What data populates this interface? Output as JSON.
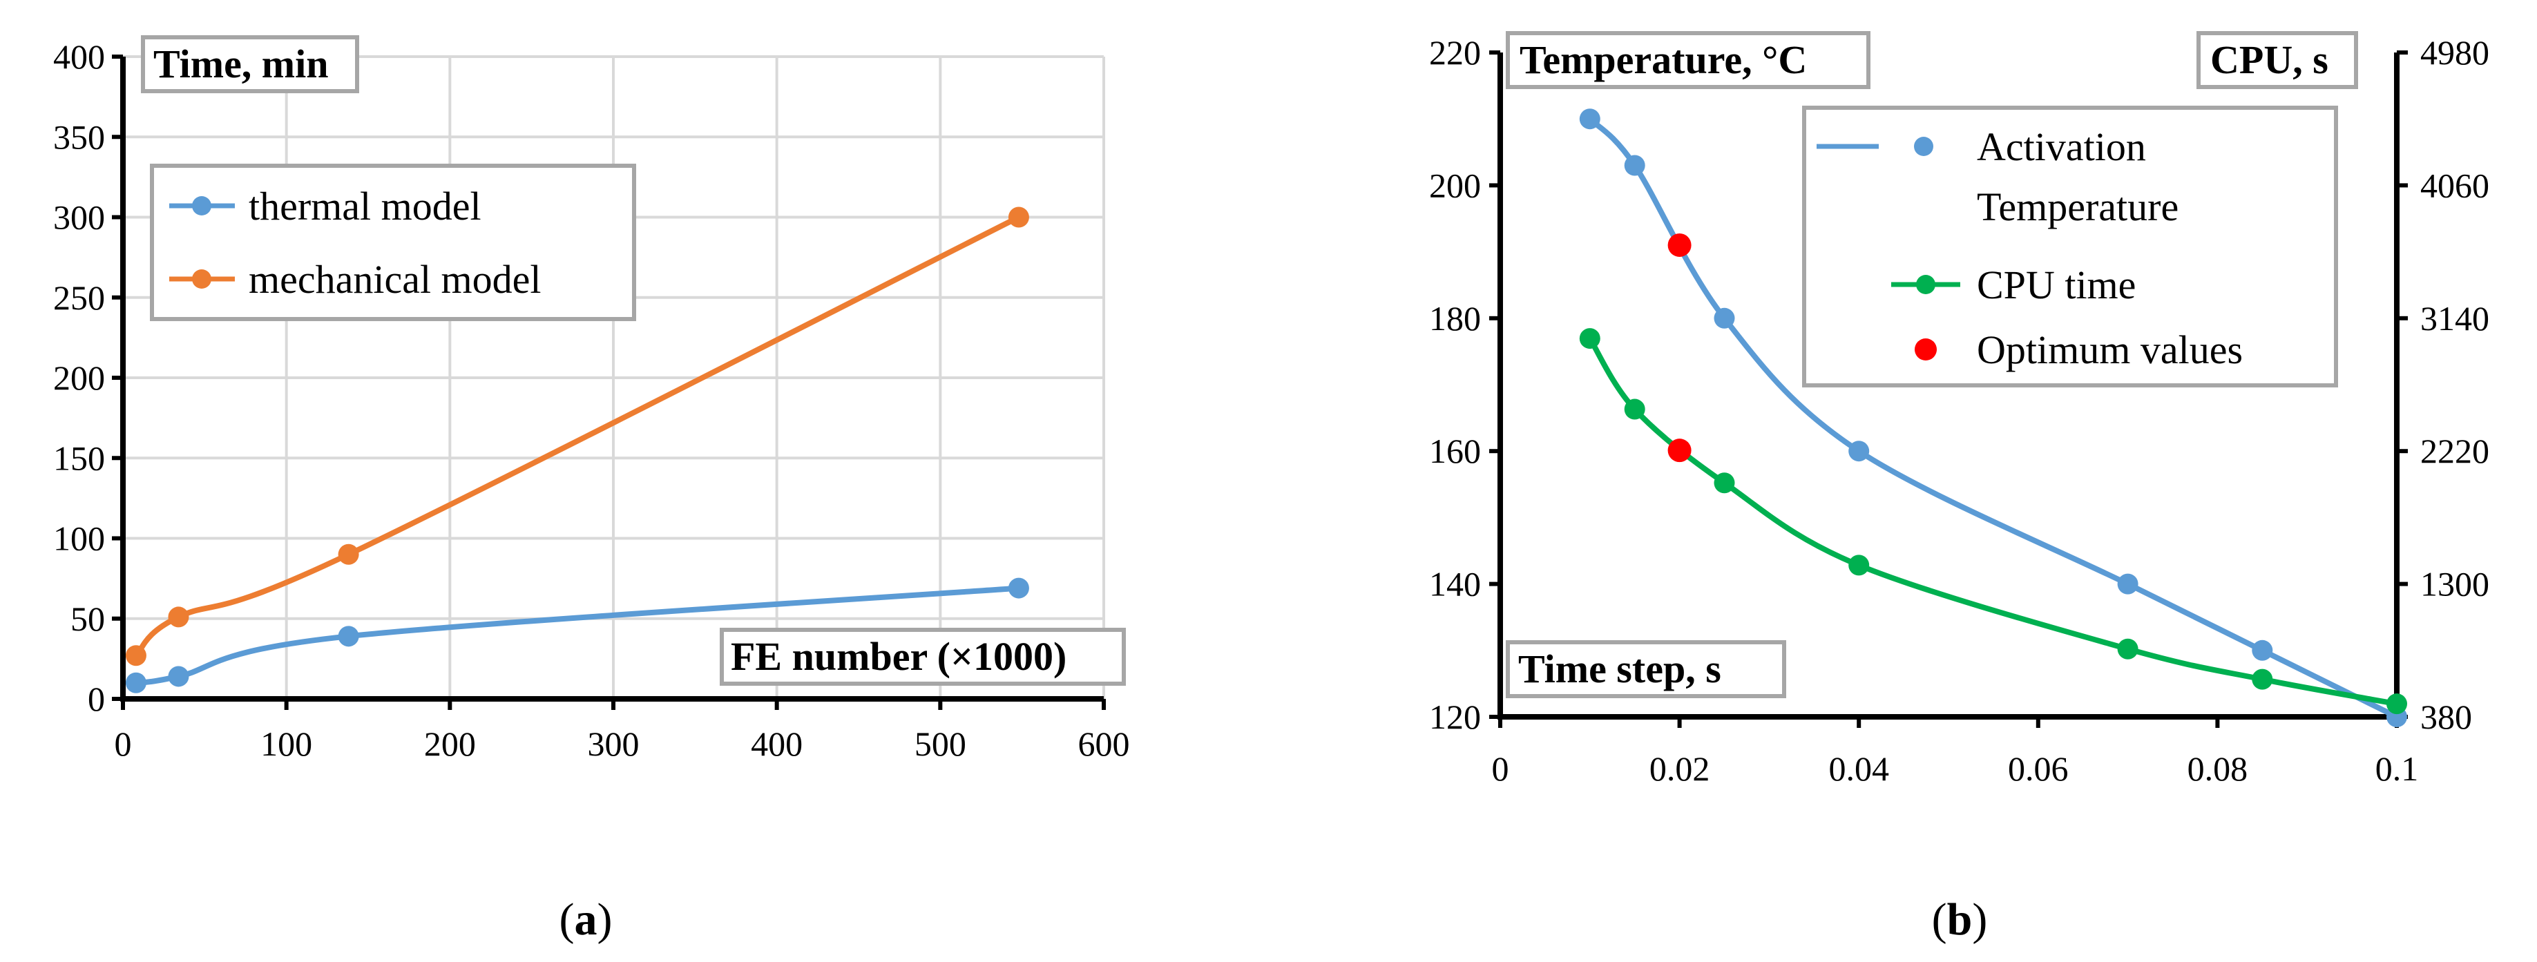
{
  "chart_data": [
    {
      "type": "line",
      "panel": "a",
      "caption_letter": "a",
      "y_label": "Time, min",
      "x_label": "FE number (×1000)",
      "xlim": [
        0,
        600
      ],
      "ylim": [
        0,
        400
      ],
      "x_ticks": [
        0,
        100,
        200,
        300,
        400,
        500,
        600
      ],
      "y_ticks": [
        0,
        50,
        100,
        150,
        200,
        250,
        300,
        350,
        400
      ],
      "grid": true,
      "legend_position": "top-left",
      "series": [
        {
          "name": "thermal model",
          "color": "#5b9bd5",
          "x": [
            8,
            34,
            138,
            548
          ],
          "values": [
            10,
            14,
            39,
            69
          ]
        },
        {
          "name": "mechanical model",
          "color": "#ed7d31",
          "x": [
            8,
            34,
            138,
            548
          ],
          "values": [
            27,
            51,
            90,
            300
          ]
        }
      ]
    },
    {
      "type": "line",
      "panel": "b",
      "caption_letter": "b",
      "y_label": "Temperature, °C",
      "y2_label": "CPU, s",
      "x_label": "Time step, s",
      "xlim": [
        0,
        0.1
      ],
      "ylim": [
        120,
        220
      ],
      "y2lim": [
        380,
        4980
      ],
      "x_ticks": [
        "0",
        "0.02",
        "0.04",
        "0.06",
        "0.08",
        "0.1"
      ],
      "x_tick_values": [
        0,
        0.02,
        0.04,
        0.06,
        0.08,
        0.1
      ],
      "y_ticks": [
        120,
        140,
        160,
        180,
        200,
        220
      ],
      "y2_ticks": [
        380,
        1300,
        2220,
        3140,
        4060,
        4980
      ],
      "grid": false,
      "legend_position": "top-right",
      "series": [
        {
          "name": "Activation Temperature",
          "legend_lines": [
            "Activation",
            "Temperature"
          ],
          "axis": "left",
          "color": "#5b9bd5",
          "x": [
            0.01,
            0.015,
            0.025,
            0.04,
            0.07,
            0.085,
            0.1
          ],
          "values": [
            210,
            203,
            180,
            160,
            140,
            130,
            120
          ]
        },
        {
          "name": "CPU time",
          "axis": "right",
          "color": "#00b050",
          "x": [
            0.01,
            0.015,
            0.025,
            0.04,
            0.07,
            0.085,
            0.1
          ],
          "values": [
            3000,
            2510,
            2000,
            1430,
            850,
            640,
            470
          ]
        },
        {
          "name": "Optimum values",
          "type": "scatter",
          "color": "#ff0000",
          "points": [
            {
              "x": 0.02,
              "value": 191,
              "axis": "left"
            },
            {
              "x": 0.02,
              "value": 2225,
              "axis": "right"
            }
          ]
        }
      ]
    }
  ]
}
